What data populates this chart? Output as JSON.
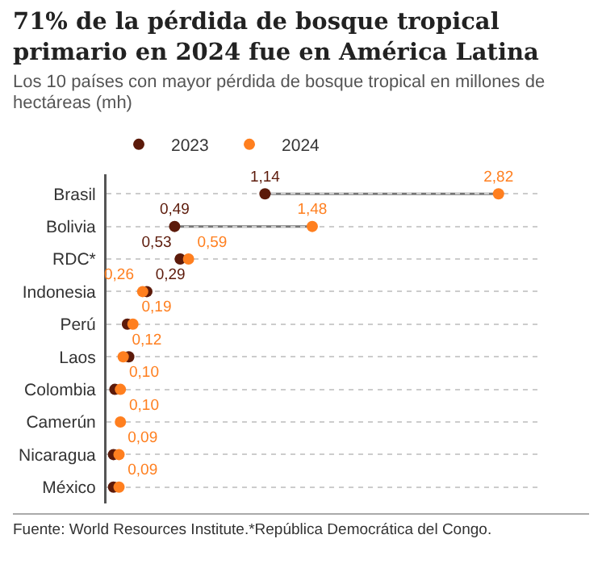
{
  "chart_data": {
    "type": "scatter",
    "orientation": "horizontal",
    "title": "71% de la pérdida de bosque tropical primario en 2024 fue en América Latina",
    "subtitle": "Los 10 países con mayor pérdida de bosque tropical en millones de hectáreas (mh)",
    "annotations": [
      "Fuente: World Resources Institute.*República Democrática del Congo."
    ],
    "categories": [
      "Brasil",
      "Bolivia",
      "RDC*",
      "Indonesia",
      "Perú",
      "Laos",
      "Colombia",
      "Camerún",
      "Nicaragua",
      "México"
    ],
    "series": [
      {
        "name": "2023",
        "color": "#5c1a0a",
        "values": [
          1.14,
          0.49,
          0.53,
          0.29,
          0.15,
          0.16,
          0.06,
          null,
          0.05,
          0.05
        ],
        "value_labels": [
          "1,14",
          "0,49",
          "0,53",
          "0,29",
          null,
          null,
          null,
          null,
          null,
          null
        ]
      },
      {
        "name": "2024",
        "color": "#ff7f1f",
        "values": [
          2.82,
          1.48,
          0.59,
          0.26,
          0.19,
          0.12,
          0.1,
          0.1,
          0.09,
          0.09
        ],
        "value_labels": [
          "2,82",
          "1,48",
          "0,59",
          "0,26",
          "0,19",
          "0,12",
          "0,10",
          "0,10",
          "0,09",
          "0,09"
        ]
      }
    ],
    "xlim": [
      0,
      3.1
    ],
    "tick_labels": "y",
    "grid": "y",
    "legend": "top left",
    "marker": "circle"
  }
}
